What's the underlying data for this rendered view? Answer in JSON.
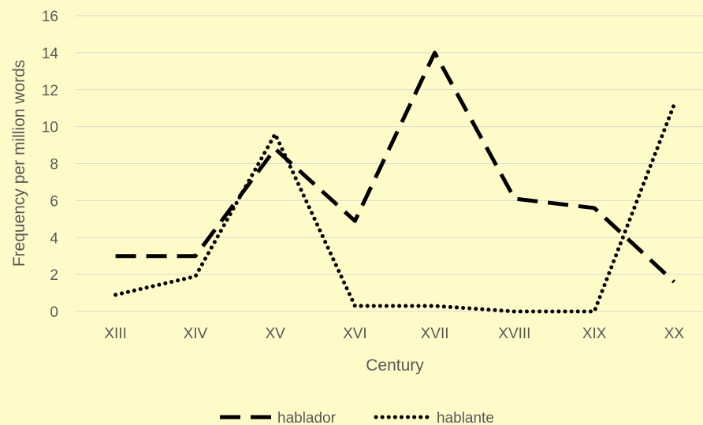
{
  "chart_data": {
    "type": "line",
    "title": "",
    "xlabel": "Century",
    "ylabel": "Frequency per million words",
    "categories": [
      "XIII",
      "XIV",
      "XV",
      "XVI",
      "XVII",
      "XVIII",
      "XIX",
      "XX"
    ],
    "ylim": [
      0,
      16
    ],
    "yticks": [
      0,
      2,
      4,
      6,
      8,
      10,
      12,
      14,
      16
    ],
    "grid": true,
    "legend_position": "bottom",
    "series": [
      {
        "name": "hablador",
        "style": "dashed",
        "color": "#000000",
        "values": [
          3.0,
          3.0,
          8.8,
          4.9,
          14.0,
          6.1,
          5.6,
          1.6
        ]
      },
      {
        "name": "hablante",
        "style": "dotted",
        "color": "#000000",
        "values": [
          0.9,
          1.9,
          9.6,
          0.3,
          0.3,
          0.0,
          0.0,
          11.2
        ]
      }
    ]
  },
  "colors": {
    "background": "#FFFBC8",
    "gridline": "#D9D9D9",
    "text": "#595959",
    "series": "#000000"
  }
}
